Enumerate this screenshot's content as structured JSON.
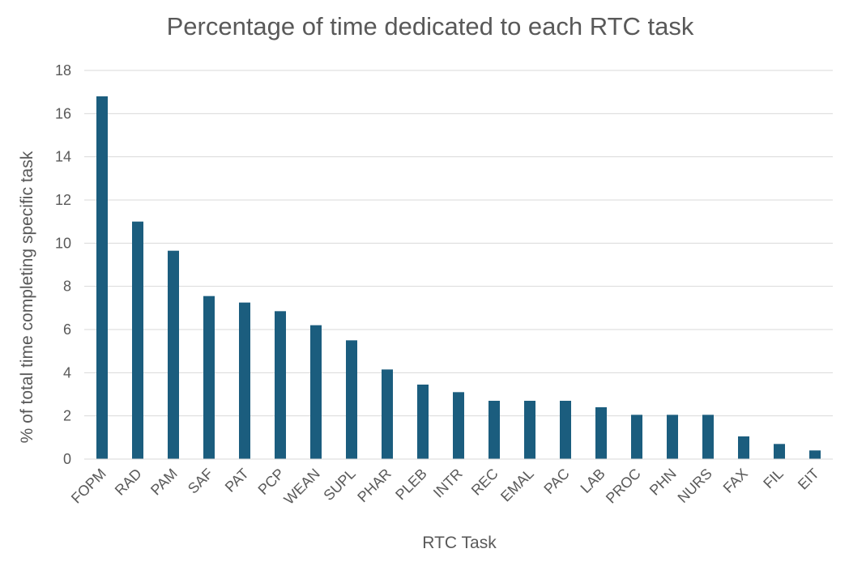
{
  "chart_data": {
    "type": "bar",
    "title": "Percentage of time dedicated to each RTC task",
    "xlabel": "RTC Task",
    "ylabel": "% of total time completing specific task",
    "categories": [
      "FOPM",
      "RAD",
      "PAM",
      "SAF",
      "PAT",
      "PCP",
      "WEAN",
      "SUPL",
      "PHAR",
      "PLEB",
      "INTR",
      "REC",
      "EMAL",
      "PAC",
      "LAB",
      "PROC",
      "PHN",
      "NURS",
      "FAX",
      "FIL",
      "EIT"
    ],
    "values": [
      16.8,
      11.0,
      9.65,
      7.55,
      7.25,
      6.85,
      6.2,
      5.5,
      4.15,
      3.45,
      3.1,
      2.7,
      2.7,
      2.7,
      2.4,
      2.05,
      2.05,
      2.05,
      1.05,
      0.7,
      0.4
    ],
    "ylim": [
      0,
      18
    ],
    "yticks": [
      "0",
      "2",
      "4",
      "6",
      "8",
      "10",
      "12",
      "14",
      "16",
      "18"
    ],
    "grid": true,
    "legend": "none",
    "bar_color": "#1b5d7e"
  }
}
